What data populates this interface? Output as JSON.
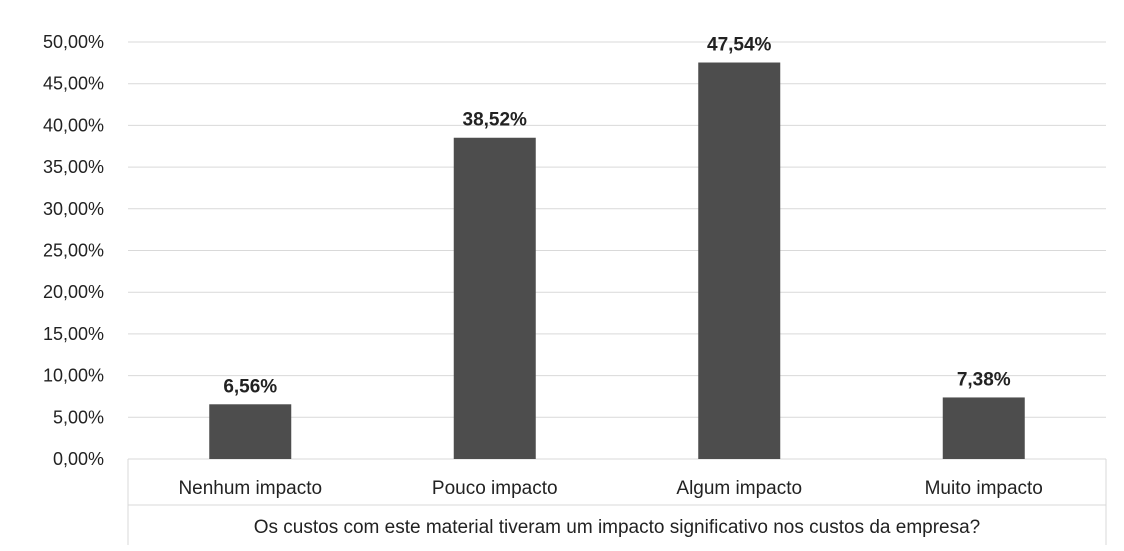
{
  "chart_data": {
    "type": "bar",
    "categories": [
      "Nenhum impacto",
      "Pouco impacto",
      "Algum impacto",
      "Muito impacto"
    ],
    "values": [
      6.56,
      38.52,
      47.54,
      7.38
    ],
    "data_labels": [
      "6,56%",
      "38,52%",
      "47,54%",
      "7,38%"
    ],
    "title": "",
    "xlabel": "Os custos com este material tiveram um impacto significativo nos custos da empresa?",
    "ylabel": "",
    "ylim": [
      0,
      50
    ],
    "yticks": [
      0,
      5,
      10,
      15,
      20,
      25,
      30,
      35,
      40,
      45,
      50
    ],
    "ytick_labels": [
      "0,00%",
      "5,00%",
      "10,00%",
      "15,00%",
      "20,00%",
      "25,00%",
      "30,00%",
      "35,00%",
      "40,00%",
      "45,00%",
      "50,00%"
    ],
    "grid": true,
    "legend": "none",
    "bar_color": "#4d4d4d"
  }
}
